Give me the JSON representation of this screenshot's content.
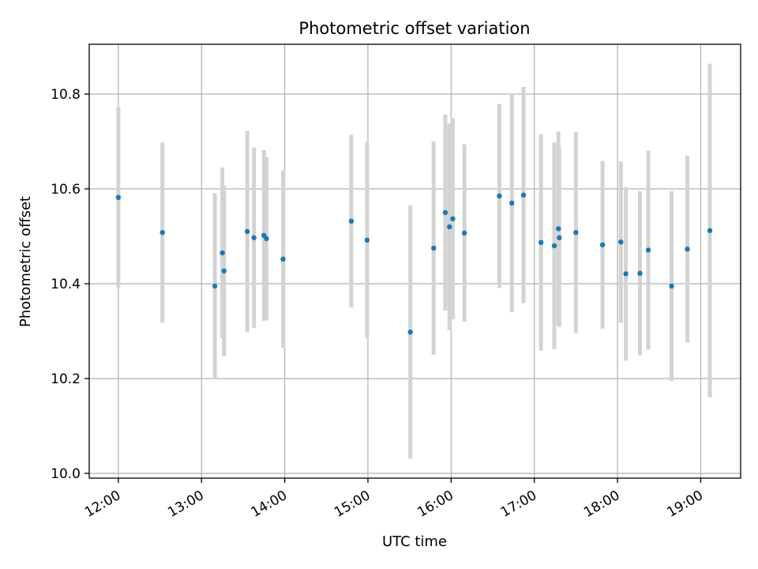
{
  "chart_data": {
    "type": "scatter",
    "title": "Photometric offset variation",
    "xlabel": "UTC time",
    "ylabel": "Photometric offset",
    "x_unit": "hours UTC",
    "xlim": [
      11.65,
      19.48
    ],
    "ylim": [
      9.99,
      10.905
    ],
    "x_ticks": [
      {
        "value": 12,
        "label": "12:00"
      },
      {
        "value": 13,
        "label": "13:00"
      },
      {
        "value": 14,
        "label": "14:00"
      },
      {
        "value": 15,
        "label": "15:00"
      },
      {
        "value": 16,
        "label": "16:00"
      },
      {
        "value": 17,
        "label": "17:00"
      },
      {
        "value": 18,
        "label": "18:00"
      },
      {
        "value": 19,
        "label": "19:00"
      }
    ],
    "y_ticks": [
      {
        "value": 10.0,
        "label": "10.0"
      },
      {
        "value": 10.2,
        "label": "10.2"
      },
      {
        "value": 10.4,
        "label": "10.4"
      },
      {
        "value": 10.6,
        "label": "10.6"
      },
      {
        "value": 10.8,
        "label": "10.8"
      }
    ],
    "grid": true,
    "marker_color": "#1f77b4",
    "errorbar_color": "#d3d3d3",
    "points": [
      {
        "x": 12.0,
        "y": 10.582,
        "err": 0.19
      },
      {
        "x": 12.53,
        "y": 10.508,
        "err": 0.19
      },
      {
        "x": 13.16,
        "y": 10.395,
        "err": 0.196
      },
      {
        "x": 13.25,
        "y": 10.465,
        "err": 0.18
      },
      {
        "x": 13.27,
        "y": 10.427,
        "err": 0.18
      },
      {
        "x": 13.55,
        "y": 10.51,
        "err": 0.212
      },
      {
        "x": 13.63,
        "y": 10.497,
        "err": 0.19
      },
      {
        "x": 13.75,
        "y": 10.502,
        "err": 0.18
      },
      {
        "x": 13.78,
        "y": 10.495,
        "err": 0.172
      },
      {
        "x": 13.98,
        "y": 10.452,
        "err": 0.187
      },
      {
        "x": 14.8,
        "y": 10.532,
        "err": 0.182
      },
      {
        "x": 14.99,
        "y": 10.492,
        "err": 0.207
      },
      {
        "x": 15.51,
        "y": 10.298,
        "err": 0.267
      },
      {
        "x": 15.79,
        "y": 10.475,
        "err": 0.225
      },
      {
        "x": 15.93,
        "y": 10.55,
        "err": 0.207
      },
      {
        "x": 15.98,
        "y": 10.52,
        "err": 0.218
      },
      {
        "x": 16.02,
        "y": 10.537,
        "err": 0.212
      },
      {
        "x": 16.16,
        "y": 10.507,
        "err": 0.187
      },
      {
        "x": 16.58,
        "y": 10.585,
        "err": 0.194
      },
      {
        "x": 16.73,
        "y": 10.57,
        "err": 0.23
      },
      {
        "x": 16.87,
        "y": 10.587,
        "err": 0.228
      },
      {
        "x": 17.08,
        "y": 10.487,
        "err": 0.228
      },
      {
        "x": 17.24,
        "y": 10.48,
        "err": 0.218
      },
      {
        "x": 17.29,
        "y": 10.516,
        "err": 0.205
      },
      {
        "x": 17.3,
        "y": 10.497,
        "err": 0.188
      },
      {
        "x": 17.5,
        "y": 10.508,
        "err": 0.212
      },
      {
        "x": 17.82,
        "y": 10.482,
        "err": 0.177
      },
      {
        "x": 18.04,
        "y": 10.488,
        "err": 0.17
      },
      {
        "x": 18.1,
        "y": 10.421,
        "err": 0.183
      },
      {
        "x": 18.27,
        "y": 10.422,
        "err": 0.173
      },
      {
        "x": 18.37,
        "y": 10.471,
        "err": 0.21
      },
      {
        "x": 18.65,
        "y": 10.395,
        "err": 0.2
      },
      {
        "x": 18.84,
        "y": 10.473,
        "err": 0.197
      },
      {
        "x": 19.11,
        "y": 10.512,
        "err": 0.352
      }
    ]
  }
}
